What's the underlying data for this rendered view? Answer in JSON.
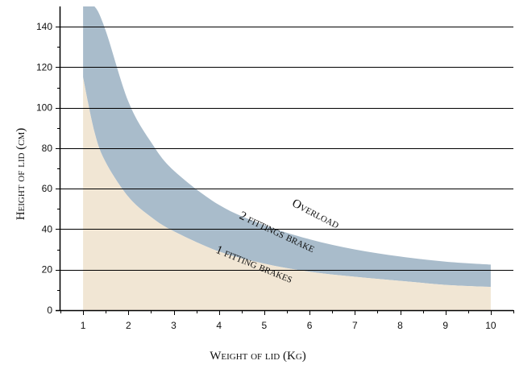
{
  "chart_data": {
    "type": "area",
    "xlabel": "Weight of lid (Kg)",
    "ylabel": "Height of lid (cm)",
    "xlim": [
      0.5,
      10.5
    ],
    "ylim": [
      0,
      150
    ],
    "x_ticks": [
      "1",
      "2",
      "3",
      "4",
      "5",
      "6",
      "7",
      "8",
      "9",
      "10"
    ],
    "y_ticks": [
      "0",
      "20",
      "40",
      "60",
      "80",
      "100",
      "120",
      "140"
    ],
    "grid": "horizontal",
    "series": [
      {
        "name": "1 fitting brakes",
        "color": "#f1e6d4",
        "x": [
          1,
          1.25,
          1.5,
          2,
          2.5,
          3,
          4,
          5,
          6,
          7,
          8,
          9,
          10
        ],
        "y": [
          115,
          88,
          73,
          56,
          46,
          39,
          29,
          23,
          19,
          16.5,
          14.5,
          12.5,
          11.5
        ]
      },
      {
        "name": "2 fittings brake",
        "color": "#a9bccb",
        "x": [
          1,
          1.25,
          1.5,
          2,
          2.5,
          3,
          4,
          5,
          6,
          7,
          8,
          9,
          10
        ],
        "y": [
          150,
          150,
          138,
          103,
          83,
          69,
          52,
          42,
          35,
          30,
          26.5,
          24,
          22.5
        ]
      }
    ],
    "annotations": [
      {
        "text": "Overload",
        "x": 6.1,
        "y": 46,
        "angle": 27
      },
      {
        "text": "2 fittings brake",
        "x": 5.25,
        "y": 37,
        "angle": 25
      },
      {
        "text": "1 fitting brakes",
        "x": 4.75,
        "y": 21,
        "angle": 22
      }
    ],
    "colors": {
      "gridline": "#000000",
      "axis": "#000000"
    }
  }
}
